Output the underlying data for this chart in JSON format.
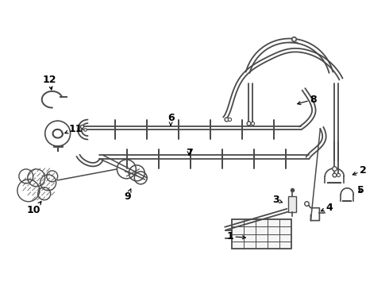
{
  "background_color": "#ffffff",
  "line_color": "#4a4a4a",
  "text_color": "#000000",
  "fig_width": 4.9,
  "fig_height": 3.6,
  "dpi": 100,
  "pipe_lw": 1.3,
  "pipe_sep": 0.018,
  "clip_size": 0.025
}
